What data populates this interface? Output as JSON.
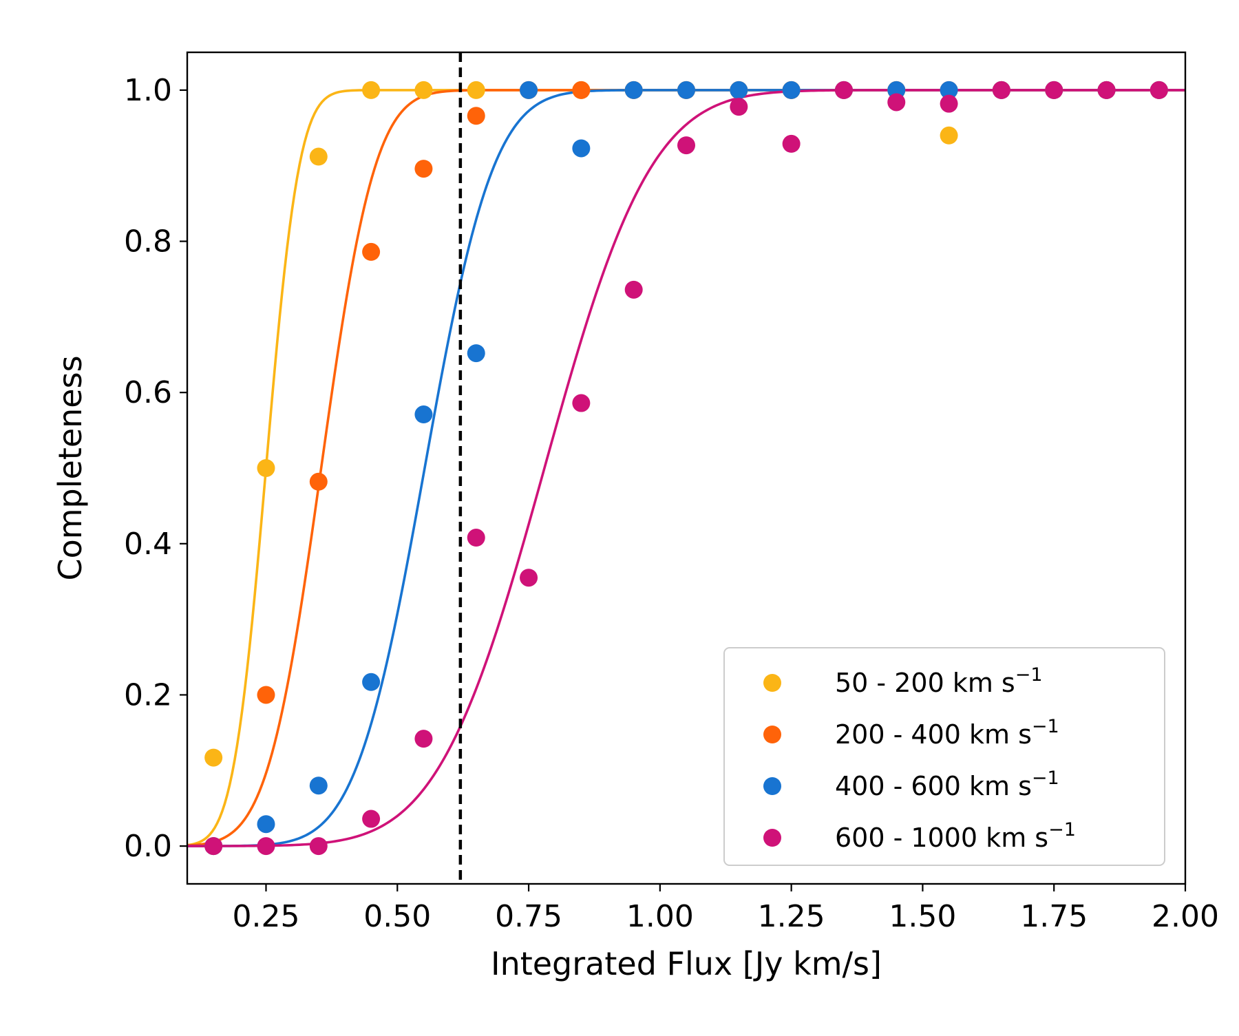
{
  "chart_data": {
    "type": "scatter",
    "title": "",
    "xlabel": "Integrated Flux [Jy km/s]",
    "ylabel": "Completeness",
    "xlim": [
      0.1,
      2.0
    ],
    "ylim": [
      -0.05,
      1.05
    ],
    "xticks": [
      0.25,
      0.5,
      0.75,
      1.0,
      1.25,
      1.5,
      1.75,
      2.0
    ],
    "xtick_labels": [
      "0.25",
      "0.50",
      "0.75",
      "1.00",
      "1.25",
      "1.50",
      "1.75",
      "2.00"
    ],
    "yticks": [
      0.0,
      0.2,
      0.4,
      0.6,
      0.8,
      1.0
    ],
    "ytick_labels": [
      "0.0",
      "0.2",
      "0.4",
      "0.6",
      "0.8",
      "1.0"
    ],
    "grid": false,
    "legend_position": "lower-right",
    "vline": {
      "x": 0.62,
      "style": "dashed",
      "color": "#000000"
    },
    "series": [
      {
        "name": "50 - 200 km s",
        "unit_sup": "−1",
        "color": "#FBB516",
        "fit": {
          "model": "erf",
          "mid": 0.25,
          "width": 0.07
        },
        "points": [
          [
            0.15,
            0.117
          ],
          [
            0.25,
            0.5
          ],
          [
            0.35,
            0.912
          ],
          [
            0.45,
            1.0
          ],
          [
            0.55,
            1.0
          ],
          [
            0.65,
            1.0
          ],
          [
            0.75,
            1.0
          ],
          [
            0.85,
            1.0
          ],
          [
            0.95,
            1.0
          ],
          [
            1.05,
            1.0
          ],
          [
            1.15,
            1.0
          ],
          [
            1.25,
            1.0
          ],
          [
            1.35,
            1.0
          ],
          [
            1.45,
            1.0
          ],
          [
            1.55,
            0.94
          ],
          [
            1.65,
            1.0
          ],
          [
            1.75,
            1.0
          ],
          [
            1.85,
            1.0
          ],
          [
            1.95,
            1.0
          ]
        ]
      },
      {
        "name": "200 - 400 km s",
        "unit_sup": "−1",
        "color": "#FF6309",
        "fit": {
          "model": "erf",
          "mid": 0.355,
          "width": 0.114
        },
        "points": [
          [
            0.15,
            0.0
          ],
          [
            0.25,
            0.2
          ],
          [
            0.35,
            0.482
          ],
          [
            0.45,
            0.786
          ],
          [
            0.55,
            0.896
          ],
          [
            0.65,
            0.966
          ],
          [
            0.75,
            1.0
          ],
          [
            0.85,
            1.0
          ],
          [
            0.95,
            1.0
          ],
          [
            1.05,
            1.0
          ],
          [
            1.15,
            1.0
          ],
          [
            1.25,
            1.0
          ],
          [
            1.35,
            1.0
          ],
          [
            1.45,
            1.0
          ],
          [
            1.55,
            1.0
          ],
          [
            1.65,
            1.0
          ],
          [
            1.75,
            1.0
          ],
          [
            1.85,
            1.0
          ],
          [
            1.95,
            1.0
          ]
        ]
      },
      {
        "name": "400 - 600 km s",
        "unit_sup": "−1",
        "color": "#1874D1",
        "fit": {
          "model": "erf",
          "mid": 0.552,
          "width": 0.146
        },
        "points": [
          [
            0.15,
            0.0
          ],
          [
            0.25,
            0.029
          ],
          [
            0.35,
            0.08
          ],
          [
            0.45,
            0.217
          ],
          [
            0.55,
            0.571
          ],
          [
            0.65,
            0.652
          ],
          [
            0.75,
            1.0
          ],
          [
            0.85,
            0.923
          ],
          [
            0.95,
            1.0
          ],
          [
            1.05,
            1.0
          ],
          [
            1.15,
            1.0
          ],
          [
            1.25,
            1.0
          ],
          [
            1.35,
            1.0
          ],
          [
            1.45,
            1.0
          ],
          [
            1.55,
            1.0
          ],
          [
            1.65,
            1.0
          ],
          [
            1.75,
            1.0
          ],
          [
            1.85,
            1.0
          ],
          [
            1.95,
            1.0
          ]
        ]
      },
      {
        "name": "600 - 1000 km s",
        "unit_sup": "−1",
        "color": "#CF1278",
        "fit": {
          "model": "erf",
          "mid": 0.78,
          "width": 0.226
        },
        "points": [
          [
            0.15,
            0.0
          ],
          [
            0.25,
            0.0
          ],
          [
            0.35,
            0.0
          ],
          [
            0.45,
            0.036
          ],
          [
            0.55,
            0.142
          ],
          [
            0.65,
            0.408
          ],
          [
            0.75,
            0.355
          ],
          [
            0.85,
            0.586
          ],
          [
            0.95,
            0.736
          ],
          [
            1.05,
            0.927
          ],
          [
            1.15,
            0.978
          ],
          [
            1.25,
            0.929
          ],
          [
            1.35,
            1.0
          ],
          [
            1.45,
            0.984
          ],
          [
            1.55,
            0.982
          ],
          [
            1.65,
            1.0
          ],
          [
            1.75,
            1.0
          ],
          [
            1.85,
            1.0
          ],
          [
            1.95,
            1.0
          ]
        ]
      }
    ]
  }
}
